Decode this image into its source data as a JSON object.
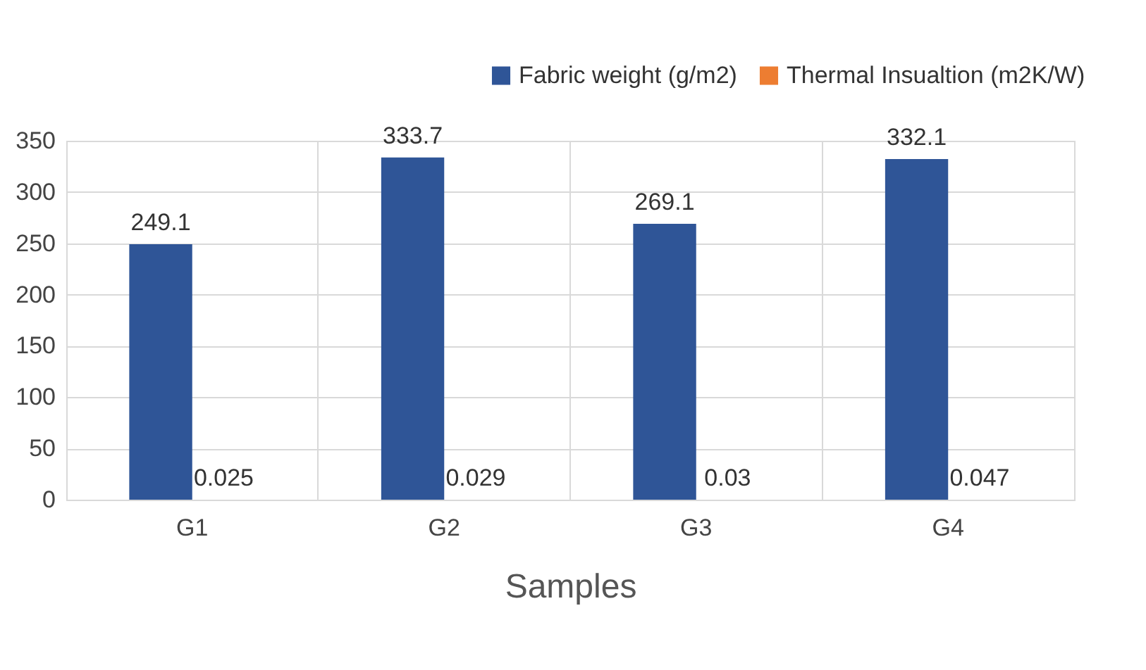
{
  "chart_data": {
    "type": "bar",
    "xlabel": "Samples",
    "categories": [
      "G1",
      "G2",
      "G3",
      "G4"
    ],
    "series": [
      {
        "name": "Fabric weight (g/m2)",
        "color": "#2f5597",
        "values": [
          249.1,
          333.7,
          269.1,
          332.1
        ]
      },
      {
        "name": "Thermal Insualtion (m2K/W)",
        "color": "#ed7d31",
        "values": [
          0.025,
          0.029,
          0.03,
          0.047
        ]
      }
    ],
    "ylim": [
      0,
      350
    ],
    "yticks": [
      0,
      50,
      100,
      150,
      200,
      250,
      300,
      350
    ],
    "grid": true,
    "legend": "top right",
    "data_labels": true
  }
}
